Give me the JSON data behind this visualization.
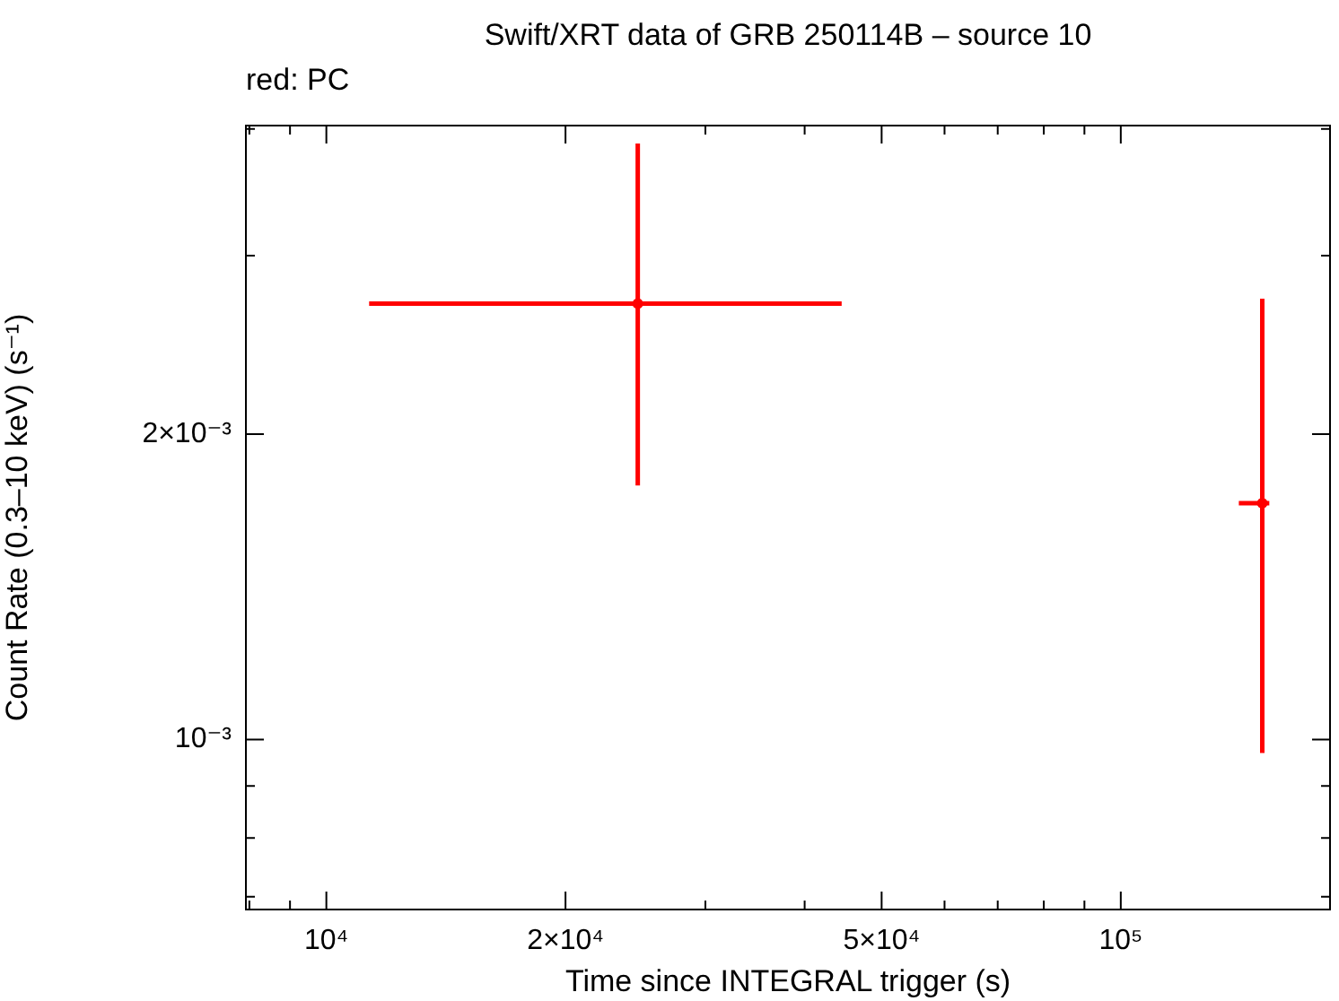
{
  "chart_data": {
    "type": "scatter",
    "title": "Swift/XRT data of GRB 250114B – source 10",
    "xlabel": "Time since INTEGRAL trigger (s)",
    "ylabel": "Count Rate (0.3–10 keV) (s⁻¹)",
    "annotations": [
      "red: PC"
    ],
    "log": "xy",
    "grid": false,
    "legend": false,
    "xlim": [
      7920,
      183400
    ],
    "ylim": [
      0.00068,
      0.00403
    ],
    "xticks": [
      {
        "value": 8000,
        "label": null
      },
      {
        "value": 9000,
        "label": null
      },
      {
        "value": 10000,
        "label": "10⁴"
      },
      {
        "value": 20000,
        "label": "2×10⁴"
      },
      {
        "value": 30000,
        "label": null
      },
      {
        "value": 40000,
        "label": null
      },
      {
        "value": 50000,
        "label": "5×10⁴"
      },
      {
        "value": 60000,
        "label": null
      },
      {
        "value": 70000,
        "label": null
      },
      {
        "value": 80000,
        "label": null
      },
      {
        "value": 90000,
        "label": null
      },
      {
        "value": 100000,
        "label": "10⁵"
      }
    ],
    "yticks": [
      {
        "value": 0.0007,
        "label": null
      },
      {
        "value": 0.0008,
        "label": null
      },
      {
        "value": 0.0009,
        "label": null
      },
      {
        "value": 0.001,
        "label": "10⁻³"
      },
      {
        "value": 0.002,
        "label": "2×10⁻³"
      },
      {
        "value": 0.003,
        "label": null
      },
      {
        "value": 0.004,
        "label": null
      }
    ],
    "series": [
      {
        "color": "#ff0000",
        "x": [
          24660,
          150700
        ],
        "values": [
          0.00269,
          0.00171
        ],
        "xerrors": [
          [
            11320,
            44530
          ],
          [
            140800,
            153800
          ]
        ],
        "errors": [
          [
            0.00178,
            0.00387
          ],
          [
            0.00097,
            0.00272
          ]
        ]
      }
    ]
  }
}
